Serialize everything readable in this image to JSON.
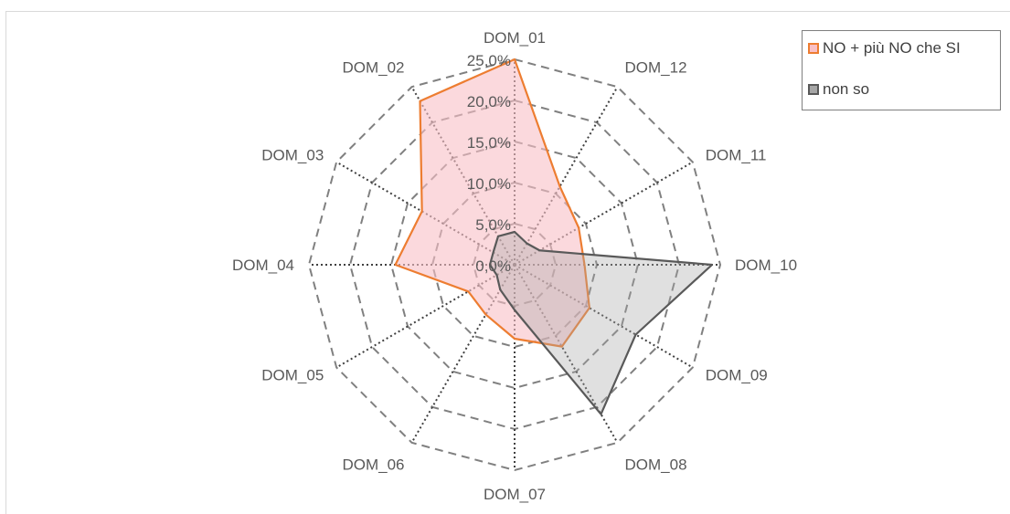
{
  "chart_data": {
    "type": "radar",
    "categories": [
      "DOM_01",
      "DOM_12",
      "DOM_11",
      "DOM_10",
      "DOM_09",
      "DOM_08",
      "DOM_07",
      "DOM_06",
      "DOM_05",
      "DOM_04",
      "DOM_03",
      "DOM_02"
    ],
    "axis_ticks": [
      "0,0%",
      "5,0%",
      "10,0%",
      "15,0%",
      "20,0%",
      "25,0%"
    ],
    "rmax": 25,
    "series": [
      {
        "name": "NO + più NO che SI",
        "values": [
          25.0,
          11.0,
          9.0,
          8.5,
          10.5,
          11.5,
          9.0,
          7.0,
          6.5,
          14.5,
          13.0,
          23.0
        ],
        "stroke": "#ed7d31",
        "fill": "#f9c0c6",
        "fill_opacity": 0.6
      },
      {
        "name": "non so",
        "values": [
          4.0,
          3.0,
          3.5,
          24.0,
          17.0,
          21.0,
          5.5,
          3.5,
          2.5,
          3.0,
          3.0,
          4.0
        ],
        "stroke": "#595959",
        "fill": "#a6a6a6",
        "fill_opacity": 0.35
      }
    ],
    "grid": "dashed polygons",
    "legend": "top-right"
  }
}
